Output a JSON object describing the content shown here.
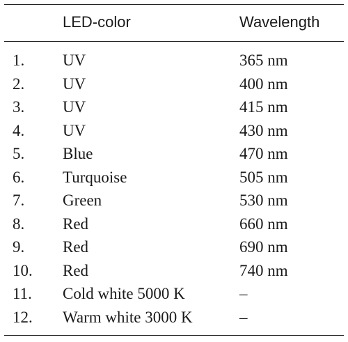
{
  "table": {
    "headers": {
      "number": "",
      "color": "LED-color",
      "wavelength": "Wavelength"
    },
    "rows": [
      {
        "num": "1.",
        "color": "UV",
        "wavelength": "365 nm"
      },
      {
        "num": "2.",
        "color": "UV",
        "wavelength": "400 nm"
      },
      {
        "num": "3.",
        "color": "UV",
        "wavelength": "415 nm"
      },
      {
        "num": "4.",
        "color": "UV",
        "wavelength": "430 nm"
      },
      {
        "num": "5.",
        "color": "Blue",
        "wavelength": "470 nm"
      },
      {
        "num": "6.",
        "color": "Turquoise",
        "wavelength": "505 nm"
      },
      {
        "num": "7.",
        "color": "Green",
        "wavelength": "530 nm"
      },
      {
        "num": "8.",
        "color": "Red",
        "wavelength": "660 nm"
      },
      {
        "num": "9.",
        "color": "Red",
        "wavelength": "690 nm"
      },
      {
        "num": "10.",
        "color": "Red",
        "wavelength": "740 nm"
      },
      {
        "num": "11.",
        "color": "Cold white 5000 K",
        "wavelength": "–"
      },
      {
        "num": "12.",
        "color": "Warm white 3000 K",
        "wavelength": "–"
      }
    ]
  }
}
